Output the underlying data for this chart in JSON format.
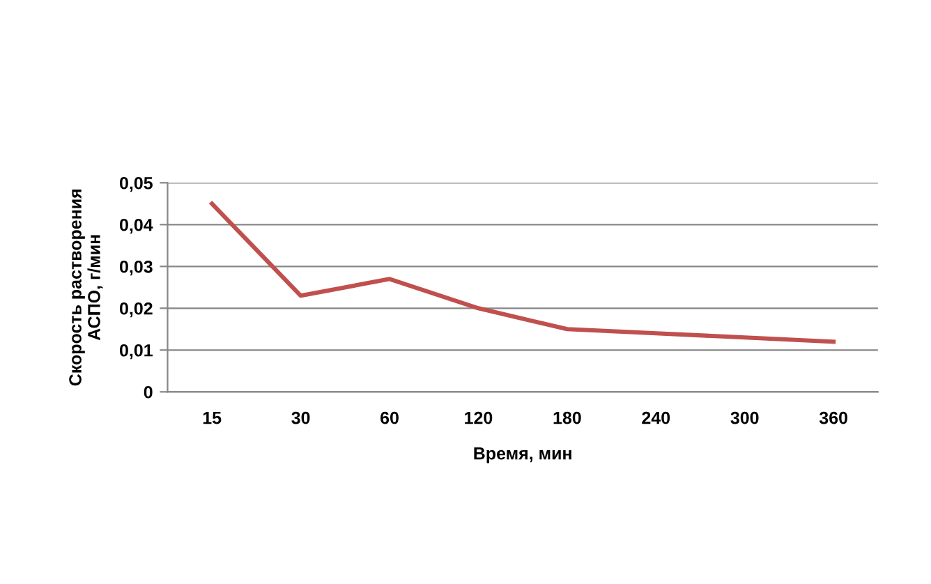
{
  "chart_data": {
    "type": "line",
    "xlabel": "Время, мин",
    "ylabel": "Скорость растворения\nАСПО, г/мин",
    "categories": [
      "15",
      "30",
      "60",
      "120",
      "180",
      "240",
      "300",
      "360"
    ],
    "series": [
      {
        "color": "#c0504d",
        "values": [
          0.045,
          0.023,
          0.027,
          0.02,
          0.015,
          0.014,
          0.013,
          0.012
        ]
      }
    ],
    "ylim": [
      0,
      0.05
    ],
    "yticks": [
      0,
      {
        "value": 0.01,
        "label": "0,01"
      },
      {
        "value": 0.02,
        "label": "0,02"
      },
      {
        "value": 0.03,
        "label": "0,03"
      },
      {
        "value": 0.04,
        "label": "0,04"
      },
      {
        "value": 0.05,
        "label": "0,05"
      }
    ],
    "grid": "y",
    "marker": "none",
    "line_style": "solid"
  }
}
